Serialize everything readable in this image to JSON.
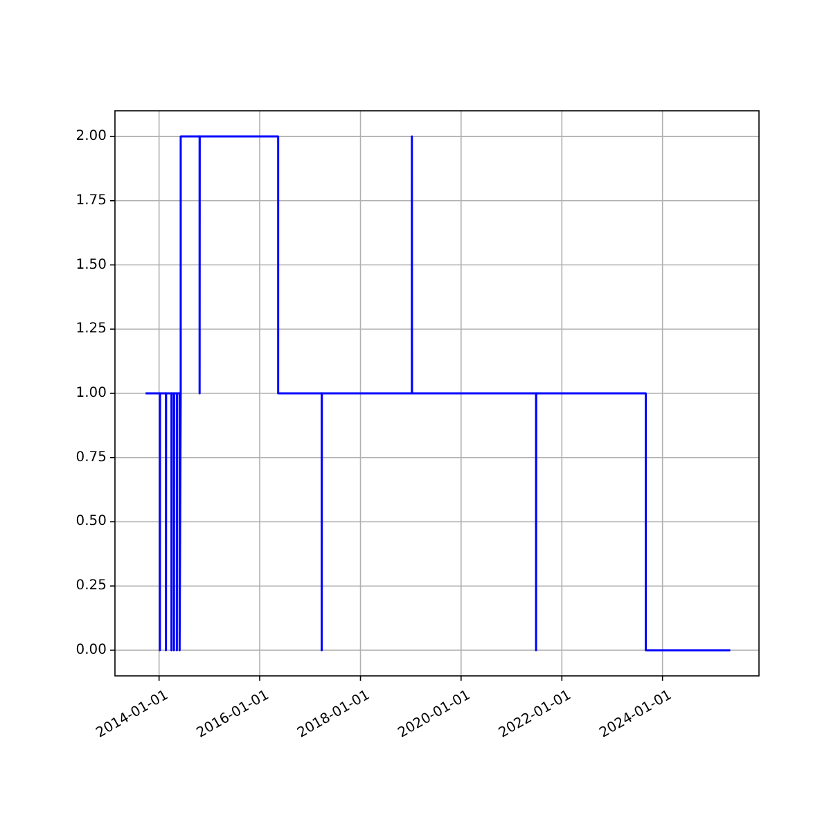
{
  "chart_data": {
    "type": "line",
    "x": [
      "2013-09-25",
      "2014-01-07",
      "2014-01-07",
      "2014-01-08",
      "2014-02-20",
      "2014-02-20",
      "2014-02-21",
      "2014-04-01",
      "2014-04-01",
      "2014-04-02",
      "2014-04-19",
      "2014-04-19",
      "2014-04-20",
      "2014-05-10",
      "2014-05-10",
      "2014-05-11",
      "2014-05-30",
      "2014-05-30",
      "2014-06-07",
      "2014-06-07",
      "2014-10-22",
      "2014-10-22",
      "2014-10-23",
      "2016-05-14",
      "2016-05-14",
      "2017-03-26",
      "2017-03-26",
      "2017-03-27",
      "2019-01-09",
      "2019-01-09",
      "2019-01-10",
      "2021-06-28",
      "2021-06-28",
      "2021-06-29",
      "2023-09-02",
      "2023-09-02",
      "2025-05-07"
    ],
    "series": [
      {
        "color": "#0000ff",
        "values": [
          1,
          1,
          0,
          1,
          1,
          0,
          1,
          1,
          0,
          1,
          1,
          0,
          1,
          1,
          0,
          1,
          1,
          0,
          1,
          2,
          2,
          1,
          2,
          2,
          1,
          1,
          0,
          1,
          1,
          2,
          1,
          1,
          0,
          1,
          1,
          0,
          0
        ]
      }
    ],
    "xlim": [
      "2013-02-15",
      "2025-12-01"
    ],
    "xticks": [
      {
        "value": "2014-01-01",
        "label": "2014-01-01"
      },
      {
        "value": "2016-01-01",
        "label": "2016-01-01"
      },
      {
        "value": "2018-01-01",
        "label": "2018-01-01"
      },
      {
        "value": "2020-01-01",
        "label": "2020-01-01"
      },
      {
        "value": "2022-01-01",
        "label": "2022-01-01"
      },
      {
        "value": "2024-01-01",
        "label": "2024-01-01"
      }
    ],
    "ylim": [
      -0.1,
      2.1
    ],
    "yticks": [
      {
        "value": 0,
        "label": "0.00"
      },
      {
        "value": 0.25,
        "label": "0.25"
      },
      {
        "value": 0.5,
        "label": "0.50"
      },
      {
        "value": 0.75,
        "label": "0.75"
      },
      {
        "value": 1,
        "label": "1.00"
      },
      {
        "value": 1.25,
        "label": "1.25"
      },
      {
        "value": 1.5,
        "label": "1.50"
      },
      {
        "value": 1.75,
        "label": "1.75"
      },
      {
        "value": 2,
        "label": "2.00"
      }
    ],
    "grid": true
  }
}
